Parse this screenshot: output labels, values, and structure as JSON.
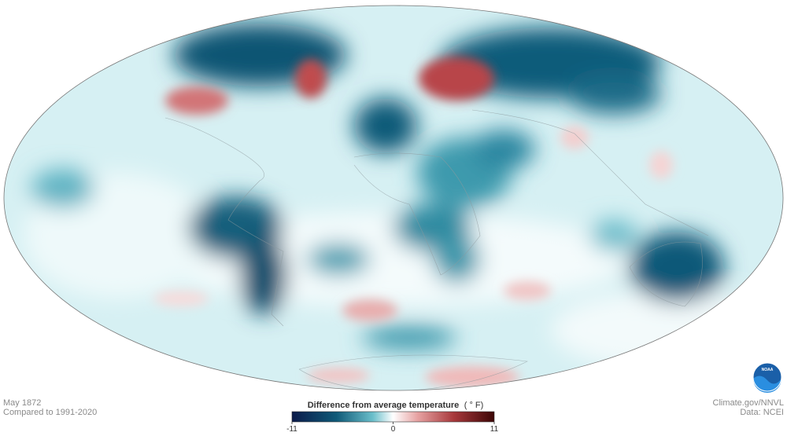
{
  "caption": {
    "date": "May 1872",
    "baseline": "Compared to 1991-2020"
  },
  "credit": {
    "site": "Climate.gov/NNVL",
    "data": "Data: NCEI",
    "logo": "NOAA"
  },
  "legend": {
    "title": "Difference from average temperature",
    "unit": "( ° F)",
    "range": [
      -11,
      11
    ],
    "ticks": [
      -11,
      0,
      11
    ]
  }
}
